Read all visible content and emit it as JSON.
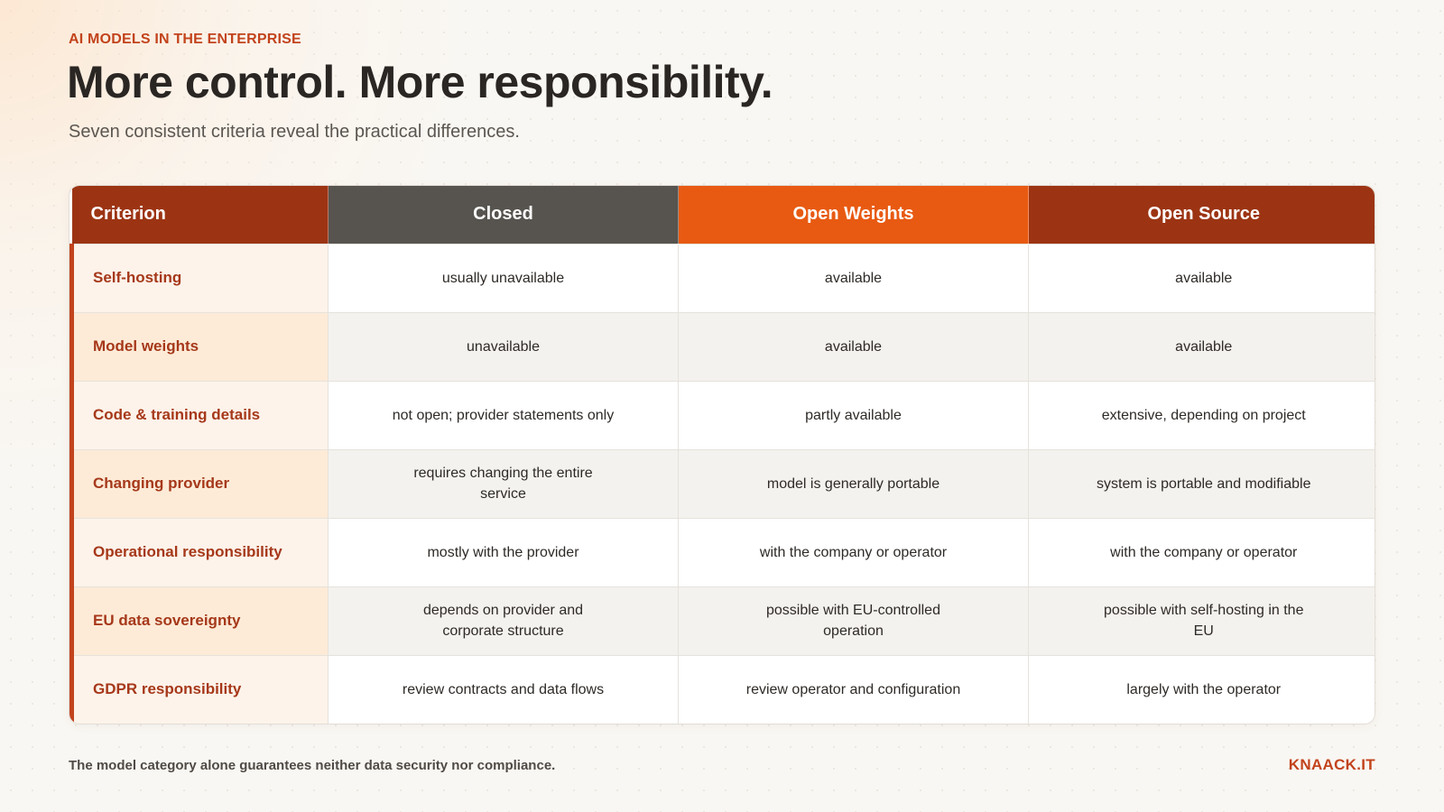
{
  "header": {
    "eyebrow": "AI MODELS IN THE ENTERPRISE",
    "title": "More control. More responsibility.",
    "subtitle": "Seven consistent criteria reveal the practical differences."
  },
  "table": {
    "columns": [
      "Criterion",
      "Closed",
      "Open Weights",
      "Open Source"
    ],
    "rows": [
      {
        "criterion": "Self-hosting",
        "closed": "usually unavailable",
        "open_weights": "available",
        "open_source": "available"
      },
      {
        "criterion": "Model weights",
        "closed": "unavailable",
        "open_weights": "available",
        "open_source": "available"
      },
      {
        "criterion": "Code & training details",
        "closed": "not open; provider statements only",
        "open_weights": "partly available",
        "open_source": "extensive, depending on project"
      },
      {
        "criterion": "Changing provider",
        "closed": "requires changing the entire service",
        "open_weights": "model is generally portable",
        "open_source": "system is portable and modifiable"
      },
      {
        "criterion": "Operational responsibility",
        "closed": "mostly with the provider",
        "open_weights": "with the company or operator",
        "open_source": "with the company or operator"
      },
      {
        "criterion": "EU data sovereignty",
        "closed": "depends on provider and corporate structure",
        "open_weights": "possible with EU-controlled operation",
        "open_source": "possible with self-hosting in the EU"
      },
      {
        "criterion": "GDPR responsibility",
        "closed": "review contracts and data flows",
        "open_weights": "review operator and configuration",
        "open_source": "largely with the operator"
      }
    ]
  },
  "footer": {
    "note": "The model category alone guarantees neither data security nor compliance.",
    "brand": "KNAACK.IT"
  },
  "colors": {
    "accent": "#c2431c",
    "header_criterion": "#9c3413",
    "header_closed": "#57544f",
    "header_open_weights": "#e85a12",
    "header_open_source": "#9c3413"
  }
}
